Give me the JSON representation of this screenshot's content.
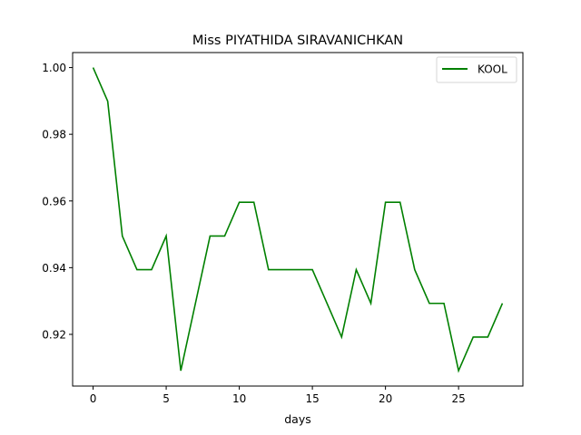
{
  "chart_data": {
    "type": "line",
    "title": "Miss PIYATHIDA SIRAVANICHKAN",
    "xlabel": "days",
    "ylabel": "",
    "x": [
      0,
      1,
      2,
      3,
      4,
      5,
      6,
      7,
      8,
      9,
      10,
      11,
      12,
      13,
      14,
      15,
      16,
      17,
      18,
      19,
      20,
      21,
      22,
      23,
      24,
      25,
      26,
      27,
      28
    ],
    "series": [
      {
        "name": "KOOL",
        "color": "#008000",
        "values": [
          1.0,
          0.9899,
          0.9495,
          0.9394,
          0.9394,
          0.9495,
          0.9091,
          0.9293,
          0.9495,
          0.9495,
          0.9596,
          0.9596,
          0.9394,
          0.9394,
          0.9394,
          0.9394,
          0.9293,
          0.9192,
          0.9394,
          0.9293,
          0.9596,
          0.9596,
          0.9394,
          0.9293,
          0.9293,
          0.9091,
          0.9192,
          0.9192,
          0.9293
        ]
      }
    ],
    "xlim": [
      -1.4,
      29.4
    ],
    "ylim": [
      0.9045,
      1.0045
    ],
    "xticks": [
      0,
      5,
      10,
      15,
      20,
      25
    ],
    "yticks": [
      0.92,
      0.94,
      0.96,
      0.98,
      1.0
    ],
    "ytick_labels": [
      "0.92",
      "0.94",
      "0.96",
      "0.98",
      "1.00"
    ],
    "grid": false,
    "legend_position": "upper-right"
  }
}
